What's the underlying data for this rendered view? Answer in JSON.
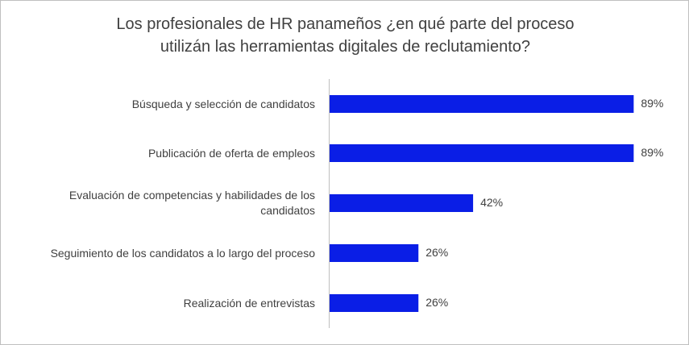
{
  "chart_data": {
    "type": "bar",
    "orientation": "horizontal",
    "title_lines": [
      "Los profesionales de HR panameños ¿en qué parte del proceso",
      "utilizán las herramientas digitales de reclutamiento?"
    ],
    "categories": [
      [
        "Búsqueda y selección de candidatos"
      ],
      [
        "Publicación de oferta de empleos"
      ],
      [
        "Evaluación de competencias y habilidades de los",
        "candidatos"
      ],
      [
        "Seguimiento de los candidatos a lo largo del proceso"
      ],
      [
        "Realización de entrevistas"
      ]
    ],
    "values": [
      89,
      89,
      42,
      26,
      26
    ],
    "value_labels": [
      "89%",
      "89%",
      "42%",
      "26%",
      "26%"
    ],
    "xlim": [
      0,
      100
    ],
    "grid": false,
    "legend": "none",
    "colors": {
      "bar": "#0a1ee6",
      "axis": "#bfbfbf",
      "text": "#404040"
    }
  }
}
